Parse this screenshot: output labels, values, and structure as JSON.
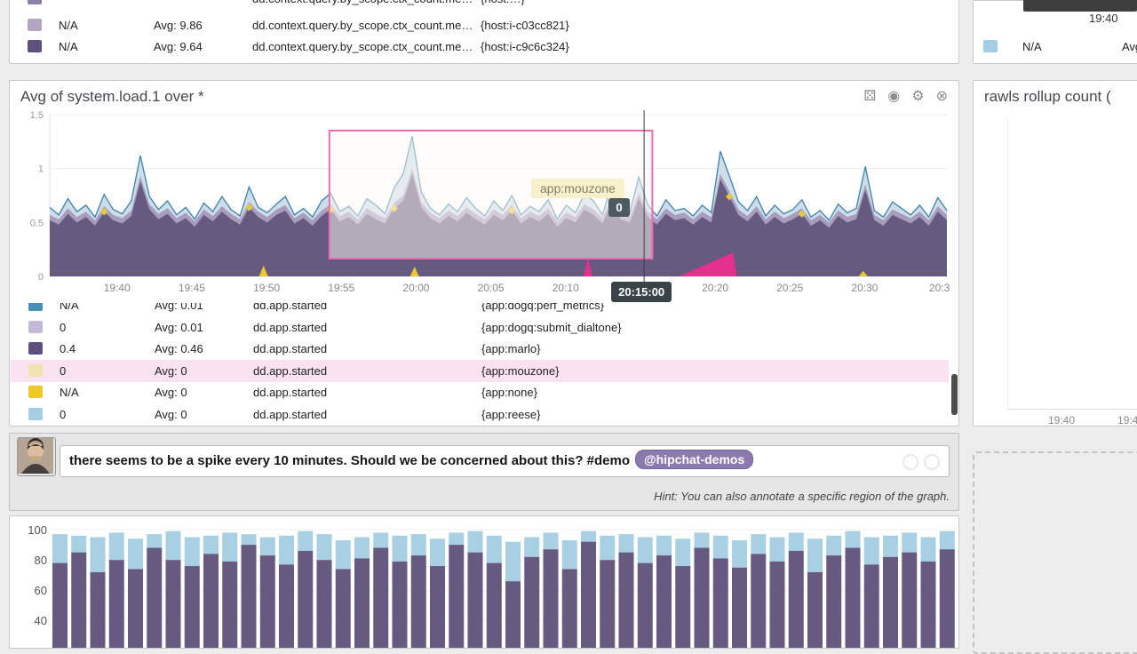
{
  "top_left_table": {
    "rows": [
      {
        "partial": true,
        "swatch": "#8a7fa5",
        "value": "",
        "avg": "",
        "metric": "dd.context.query.by_scope.ctx_count.me…",
        "tag": "{host:…}"
      },
      {
        "swatch": "#b3a6c2",
        "value": "N/A",
        "avg": "Avg: 9.86",
        "metric": "dd.context.query.by_scope.ctx_count.me…",
        "tag": "{host:i-c03cc821}"
      },
      {
        "swatch": "#5e5180",
        "value": "N/A",
        "avg": "Avg: 9.64",
        "metric": "dd.context.query.by_scope.ctx_count.me…",
        "tag": "{host:i-c9c6c324}"
      }
    ]
  },
  "top_right_panel": {
    "time_label": "19:40",
    "row": {
      "value": "N/A",
      "avg_label": "Avg"
    }
  },
  "main_panel": {
    "title": "Avg of system.load.1 over *",
    "icons": [
      {
        "name": "snapshot-grid-icon",
        "glyph": "⚄"
      },
      {
        "name": "camera-icon",
        "glyph": "◉"
      },
      {
        "name": "settings-gear-icon",
        "glyph": "⚙"
      },
      {
        "name": "close-icon",
        "glyph": "⊗"
      }
    ],
    "tooltip": {
      "series": "app:mouzone",
      "value": "0",
      "time": "20:15:00"
    },
    "legend_rows": [
      {
        "swatch": "#4a8fb5",
        "value": "N/A",
        "avg": "Avg: 0.01",
        "metric": "dd.app.started",
        "tag": "{app:dogq:perf_metrics}"
      },
      {
        "swatch": "#c3b8d6",
        "value": "0",
        "avg": "Avg: 0.01",
        "metric": "dd.app.started",
        "tag": "{app:dogq:submit_dialtone}"
      },
      {
        "swatch": "#5e5180",
        "value": "0.4",
        "avg": "Avg: 0.46",
        "metric": "dd.app.started",
        "tag": "{app:marlo}"
      },
      {
        "swatch": "#f0e4ae",
        "value": "0",
        "avg": "Avg: 0",
        "metric": "dd.app.started",
        "tag": "{app:mouzone}",
        "highlight": true
      },
      {
        "swatch": "#efc82a",
        "value": "N/A",
        "avg": "Avg: 0",
        "metric": "dd.app.started",
        "tag": "{app:none}"
      },
      {
        "swatch": "#a3cde3",
        "value": "0",
        "avg": "Avg: 0",
        "metric": "dd.app.started",
        "tag": "{app:reese}"
      }
    ],
    "chart_data": {
      "type": "area",
      "title": "Avg of system.load.1 over *",
      "ylim": [
        0,
        1.5
      ],
      "y_ticks": [
        1.5,
        1,
        0.5,
        0
      ],
      "x_domain_minutes": [
        1175.5,
        1235.5
      ],
      "x_ticks": [
        {
          "m": 1180,
          "label": "19:40"
        },
        {
          "m": 1185,
          "label": "19:45"
        },
        {
          "m": 1190,
          "label": "19:50"
        },
        {
          "m": 1195,
          "label": "19:55"
        },
        {
          "m": 1200,
          "label": "20:00"
        },
        {
          "m": 1205,
          "label": "20:05"
        },
        {
          "m": 1210,
          "label": "20:10"
        },
        {
          "m": 1215,
          "label": "20:15"
        },
        {
          "m": 1220,
          "label": "20:20"
        },
        {
          "m": 1225,
          "label": "20:25"
        },
        {
          "m": 1230,
          "label": "20:30"
        },
        {
          "m": 1235,
          "label": "20:3"
        }
      ],
      "series": [
        {
          "name": "system.load.1 line",
          "color": "#3e82aa",
          "values": [
            0.64,
            0.57,
            0.72,
            0.6,
            0.66,
            0.55,
            0.76,
            0.62,
            0.58,
            0.7,
            1.12,
            0.74,
            0.62,
            0.7,
            0.57,
            0.64,
            0.53,
            0.68,
            0.6,
            0.74,
            0.62,
            0.56,
            0.83,
            0.64,
            0.59,
            0.67,
            0.74,
            0.57,
            0.63,
            0.55,
            0.7,
            0.77,
            0.6,
            0.65,
            0.56,
            0.72,
            0.66,
            0.58,
            0.82,
            0.95,
            1.3,
            0.78,
            0.63,
            0.57,
            0.67,
            0.6,
            0.73,
            0.63,
            0.56,
            0.7,
            0.61,
            0.75,
            0.57,
            0.65,
            0.6,
            0.71,
            0.53,
            0.66,
            0.59,
            0.76,
            0.7,
            0.57,
            0.86,
            0.63,
            0.59,
            0.92,
            0.66,
            0.56,
            0.71,
            0.61,
            0.63,
            0.56,
            0.66,
            0.59,
            1.16,
            0.93,
            0.69,
            0.61,
            0.74,
            0.56,
            0.66,
            0.58,
            0.62,
            0.71,
            0.55,
            0.61,
            0.52,
            0.67,
            0.59,
            0.63,
            1.02,
            0.61,
            0.55,
            0.69,
            0.63,
            0.57,
            0.66,
            0.55,
            0.73,
            0.61
          ]
        },
        {
          "name": "system.load.1 area",
          "color": "#665a80",
          "values": [
            0.52,
            0.48,
            0.58,
            0.5,
            0.55,
            0.47,
            0.6,
            0.52,
            0.49,
            0.56,
            0.88,
            0.62,
            0.53,
            0.58,
            0.49,
            0.54,
            0.46,
            0.57,
            0.51,
            0.6,
            0.53,
            0.48,
            0.64,
            0.55,
            0.5,
            0.57,
            0.61,
            0.49,
            0.54,
            0.47,
            0.56,
            0.62,
            0.51,
            0.55,
            0.48,
            0.58,
            0.53,
            0.49,
            0.63,
            0.7,
            0.95,
            0.64,
            0.54,
            0.49,
            0.56,
            0.51,
            0.59,
            0.53,
            0.48,
            0.57,
            0.52,
            0.61,
            0.49,
            0.55,
            0.51,
            0.58,
            0.46,
            0.54,
            0.5,
            0.62,
            0.57,
            0.49,
            0.68,
            0.53,
            0.5,
            0.72,
            0.55,
            0.48,
            0.58,
            0.52,
            0.54,
            0.48,
            0.55,
            0.5,
            0.9,
            0.74,
            0.57,
            0.51,
            0.6,
            0.48,
            0.55,
            0.49,
            0.53,
            0.58,
            0.47,
            0.52,
            0.45,
            0.56,
            0.5,
            0.53,
            0.8,
            0.52,
            0.47,
            0.57,
            0.53,
            0.49,
            0.55,
            0.47,
            0.6,
            0.52
          ]
        }
      ],
      "selection_minutes": [
        1194.2,
        1215.8
      ],
      "crosshair_minute": 1215.25,
      "crosshair_time": "20:15:00",
      "yellow_marker_idx": [
        6,
        22,
        31,
        38,
        51,
        62,
        75,
        83
      ],
      "bottom_triangles": [
        {
          "t": 1189.8,
          "h": 0.1,
          "color": "yellow"
        },
        {
          "t": 1199.9,
          "h": 0.09,
          "color": "yellow"
        },
        {
          "t": 1211.5,
          "h": 0.17,
          "color": "magenta"
        },
        {
          "t": 1229.9,
          "h": 0.05,
          "color": "yellow"
        }
      ],
      "magenta_ramp": {
        "t1": 1217.6,
        "t2": 1221.2,
        "h": 0.22
      }
    }
  },
  "comment_box": {
    "text": "there seems to be a spike every 10 minutes. Should we be concerned about this? #demo",
    "mention": "@hipchat-demos",
    "hint": "Hint: You can also annotate a specific region of the graph."
  },
  "bottom_chart": {
    "chart_data": {
      "type": "bar",
      "stacked": true,
      "y_ticks": [
        100,
        80,
        60,
        40
      ],
      "series": [
        {
          "name": "purple",
          "color": "#665a80",
          "values": [
            78,
            85,
            72,
            80,
            74,
            88,
            80,
            76,
            84,
            79,
            90,
            83,
            77,
            86,
            80,
            74,
            81,
            88,
            79,
            83,
            76,
            90,
            85,
            78,
            66,
            82,
            87,
            74,
            92,
            80,
            85,
            78,
            83,
            76,
            88,
            81,
            75,
            84,
            79,
            86,
            72,
            83,
            88,
            77,
            82,
            85,
            79,
            87
          ]
        },
        {
          "name": "light-blue",
          "color": "#a9cfe2",
          "totals": [
            97,
            96,
            95,
            98,
            94,
            97,
            99,
            95,
            96,
            98,
            97,
            95,
            96,
            99,
            97,
            93,
            95,
            98,
            96,
            97,
            94,
            98,
            99,
            96,
            92,
            95,
            98,
            93,
            99,
            96,
            97,
            95,
            96,
            94,
            98,
            96,
            93,
            97,
            95,
            98,
            94,
            96,
            99,
            95,
            96,
            98,
            95,
            99
          ]
        }
      ]
    }
  },
  "right_panel": {
    "title": "rawls rollup count (",
    "x_ticks": [
      "19:40",
      "19:4"
    ]
  },
  "colors": {
    "accent_purple": "#665a80",
    "blue_line": "#3e82aa",
    "light_blue": "#a9cfe2",
    "yellow": "#eec72e",
    "magenta": "#e5308e",
    "selection_pink": "#ef6cb4",
    "highlight_row": "#fbe2f1",
    "mention_bg": "#8a7aae"
  }
}
